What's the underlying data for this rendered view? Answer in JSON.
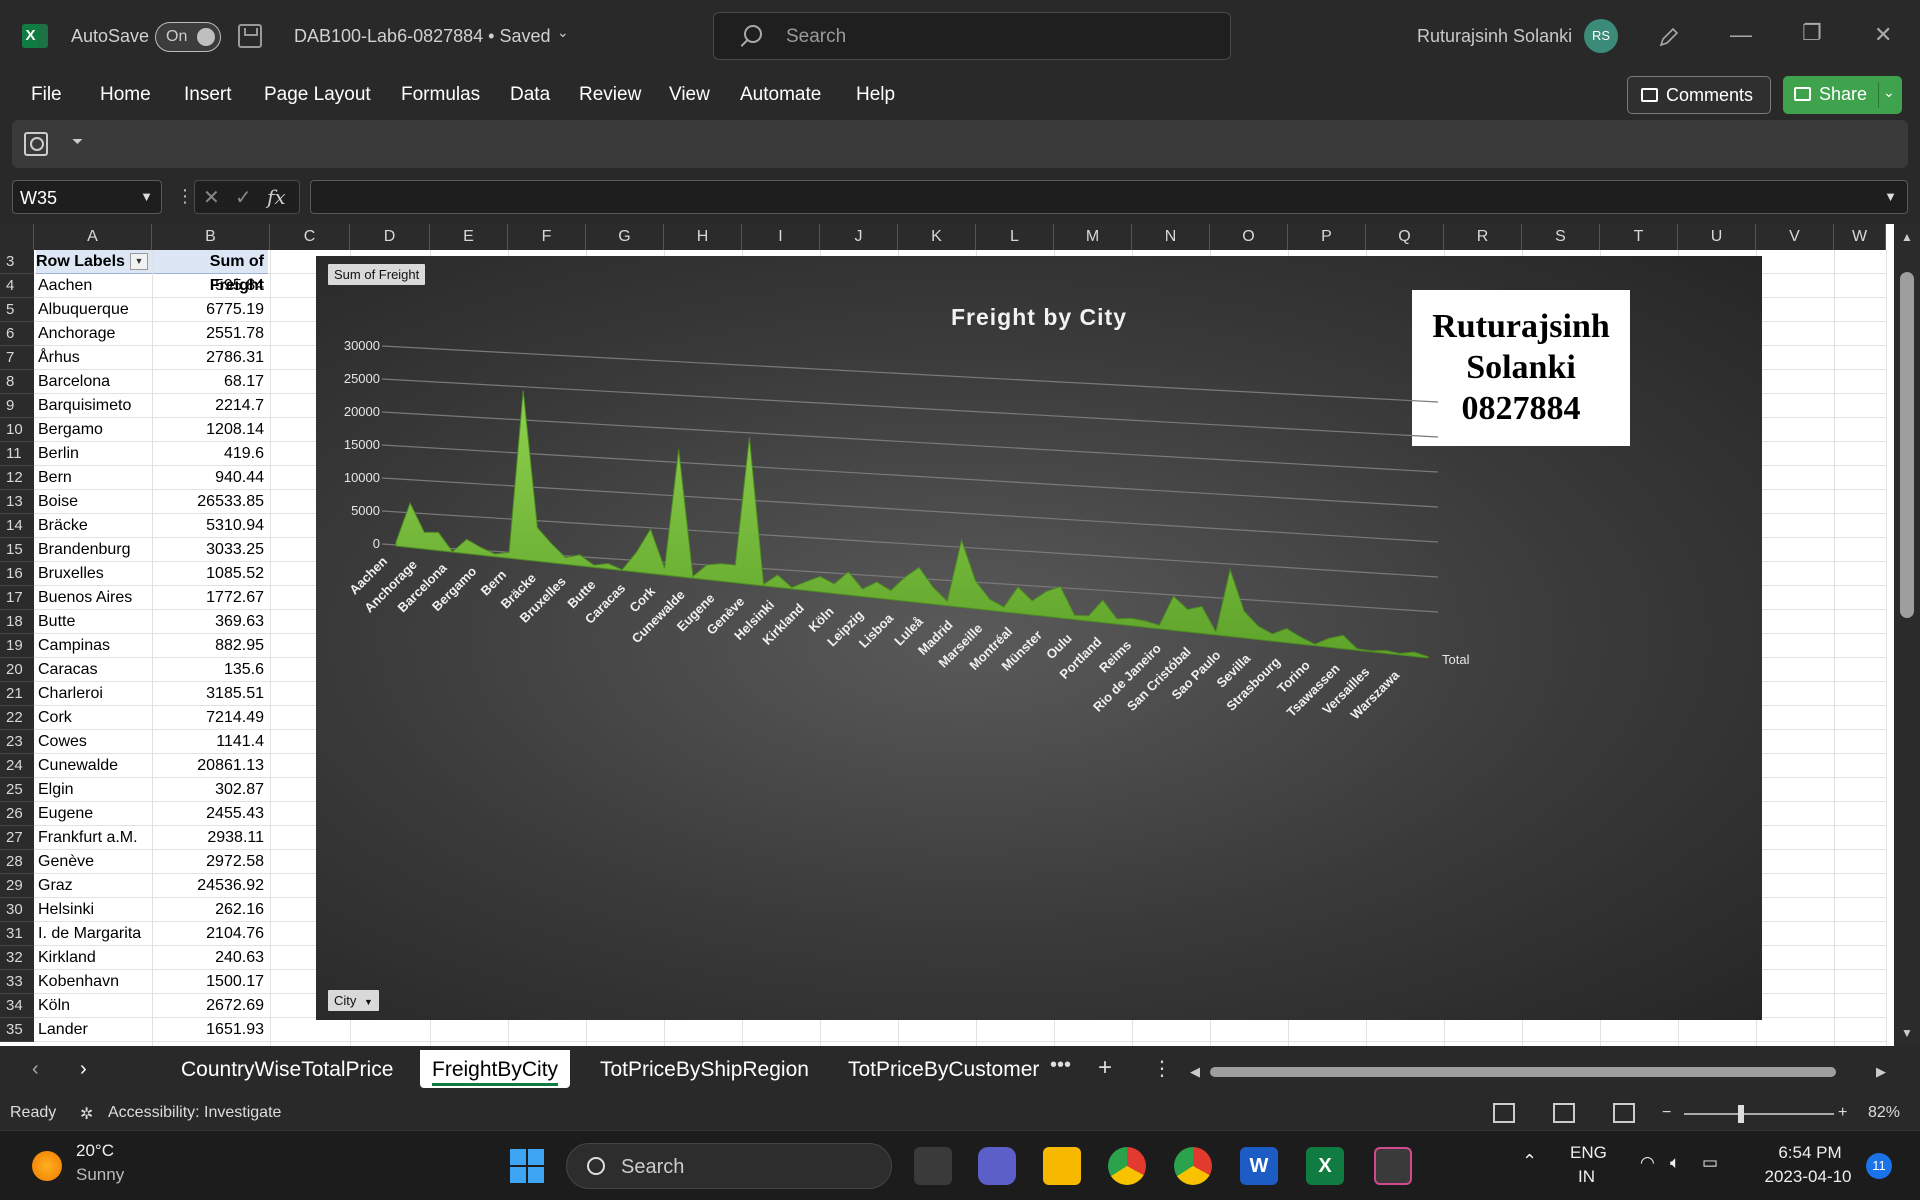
{
  "app": {
    "autosave_label": "AutoSave",
    "autosave_state": "On",
    "doc_title": "DAB100-Lab6-0827884 • Saved",
    "search_placeholder": "Search",
    "user_name": "Ruturajsinh Solanki",
    "user_initials": "RS"
  },
  "menu": {
    "items": [
      "File",
      "Home",
      "Insert",
      "Page Layout",
      "Formulas",
      "Data",
      "Review",
      "View",
      "Automate",
      "Help"
    ],
    "comments_label": "Comments",
    "share_label": "Share"
  },
  "formula_bar": {
    "name_box": "W35",
    "formula": ""
  },
  "columns": [
    "A",
    "B",
    "C",
    "D",
    "E",
    "F",
    "G",
    "H",
    "I",
    "J",
    "K",
    "L",
    "M",
    "N",
    "O",
    "P",
    "Q",
    "R",
    "S",
    "T",
    "U",
    "V",
    "W"
  ],
  "pivot": {
    "header_labels": [
      "Row Labels",
      "Sum of Freight"
    ],
    "row_numbers": [
      3,
      4,
      5,
      6,
      7,
      8,
      9,
      10,
      11,
      12,
      13,
      14,
      15,
      16,
      17,
      18,
      19,
      20,
      21,
      22,
      23,
      24,
      25,
      26,
      27,
      28,
      29,
      30,
      31,
      32,
      33,
      34,
      35
    ],
    "rows": [
      [
        "Aachen",
        "595.84"
      ],
      [
        "Albuquerque",
        "6775.19"
      ],
      [
        "Anchorage",
        "2551.78"
      ],
      [
        "Århus",
        "2786.31"
      ],
      [
        "Barcelona",
        "68.17"
      ],
      [
        "Barquisimeto",
        "2214.7"
      ],
      [
        "Bergamo",
        "1208.14"
      ],
      [
        "Berlin",
        "419.6"
      ],
      [
        "Bern",
        "940.44"
      ],
      [
        "Boise",
        "26533.85"
      ],
      [
        "Bräcke",
        "5310.94"
      ],
      [
        "Brandenburg",
        "3033.25"
      ],
      [
        "Bruxelles",
        "1085.52"
      ],
      [
        "Buenos Aires",
        "1772.67"
      ],
      [
        "Butte",
        "369.63"
      ],
      [
        "Campinas",
        "882.95"
      ],
      [
        "Caracas",
        "135.6"
      ],
      [
        "Charleroi",
        "3185.51"
      ],
      [
        "Cork",
        "7214.49"
      ],
      [
        "Cowes",
        "1141.4"
      ],
      [
        "Cunewalde",
        "20861.13"
      ],
      [
        "Elgin",
        "302.87"
      ],
      [
        "Eugene",
        "2455.43"
      ],
      [
        "Frankfurt a.M.",
        "2938.11"
      ],
      [
        "Genève",
        "2972.58"
      ],
      [
        "Graz",
        "24536.92"
      ],
      [
        "Helsinki",
        "262.16"
      ],
      [
        "I. de Margarita",
        "2104.76"
      ],
      [
        "Kirkland",
        "240.63"
      ],
      [
        "Kobenhavn",
        "1500.17"
      ],
      [
        "Köln",
        "2672.69"
      ],
      [
        "Lander",
        "1651.93"
      ]
    ]
  },
  "chart_data": {
    "type": "area",
    "title": "Freight by City",
    "field_buttons": {
      "values": "Sum of Freight",
      "axis": "City"
    },
    "series_label": "Total",
    "y_ticks": [
      "0",
      "5000",
      "10000",
      "15000",
      "20000",
      "25000",
      "30000"
    ],
    "ylim": [
      0,
      30000
    ],
    "x_tick_labels": [
      "Aachen",
      "Anchorage",
      "Barcelona",
      "Bergamo",
      "Bern",
      "Bräcke",
      "Bruxelles",
      "Butte",
      "Caracas",
      "Cork",
      "Cunewalde",
      "Eugene",
      "Genève",
      "Helsinki",
      "Kirkland",
      "Köln",
      "Leipzig",
      "Lisboa",
      "Luleå",
      "Madrid",
      "Marseille",
      "Montréal",
      "Münster",
      "Oulu",
      "Portland",
      "Reims",
      "Rio de Janeiro",
      "San Cristóbal",
      "Sao Paulo",
      "Sevilla",
      "Strasbourg",
      "Torino",
      "Tsawassen",
      "Versailles",
      "Warszawa"
    ],
    "values": [
      595.84,
      6775.19,
      2551.78,
      2786.31,
      68.17,
      2214.7,
      1208.14,
      419.6,
      940.44,
      26533.85,
      5310.94,
      3033.25,
      1085.52,
      1772.67,
      369.63,
      882.95,
      135.6,
      3185.51,
      7214.49,
      1141.4,
      20861.13,
      302.87,
      2455.43,
      2938.11,
      2972.58,
      24536.92,
      262.16,
      2104.76,
      240.63,
      1500.17,
      2672.69,
      1651.93,
      4000,
      1300,
      2800,
      1600,
      4200,
      6200,
      3000,
      800,
      12000,
      5000,
      2000,
      900,
      4800,
      2600,
      4600,
      5800,
      800,
      1000,
      4200,
      1000,
      1400,
      1200,
      700,
      6500,
      4300,
      5200,
      600,
      13000,
      5200,
      2600,
      1400,
      2800,
      1400,
      300,
      1800,
      2700,
      300,
      200,
      600,
      300,
      900,
      300
    ],
    "color": "#5ea32a",
    "grid": true
  },
  "namecard": [
    "Ruturajsinh",
    "Solanki",
    "0827884"
  ],
  "sheets": {
    "tabs": [
      "CountryWiseTotalPrice",
      "FreightByCity",
      "TotPriceByShipRegion",
      "TotPriceByCustomer"
    ],
    "active": "FreightByCity"
  },
  "status": {
    "ready": "Ready",
    "accessibility": "Accessibility: Investigate",
    "zoom": "82%"
  },
  "taskbar": {
    "temperature": "20°C",
    "weather": "Sunny",
    "search": "Search",
    "language": "ENG",
    "region": "IN",
    "time": "6:54 PM",
    "date": "2023-04-10",
    "notifications": "11"
  }
}
